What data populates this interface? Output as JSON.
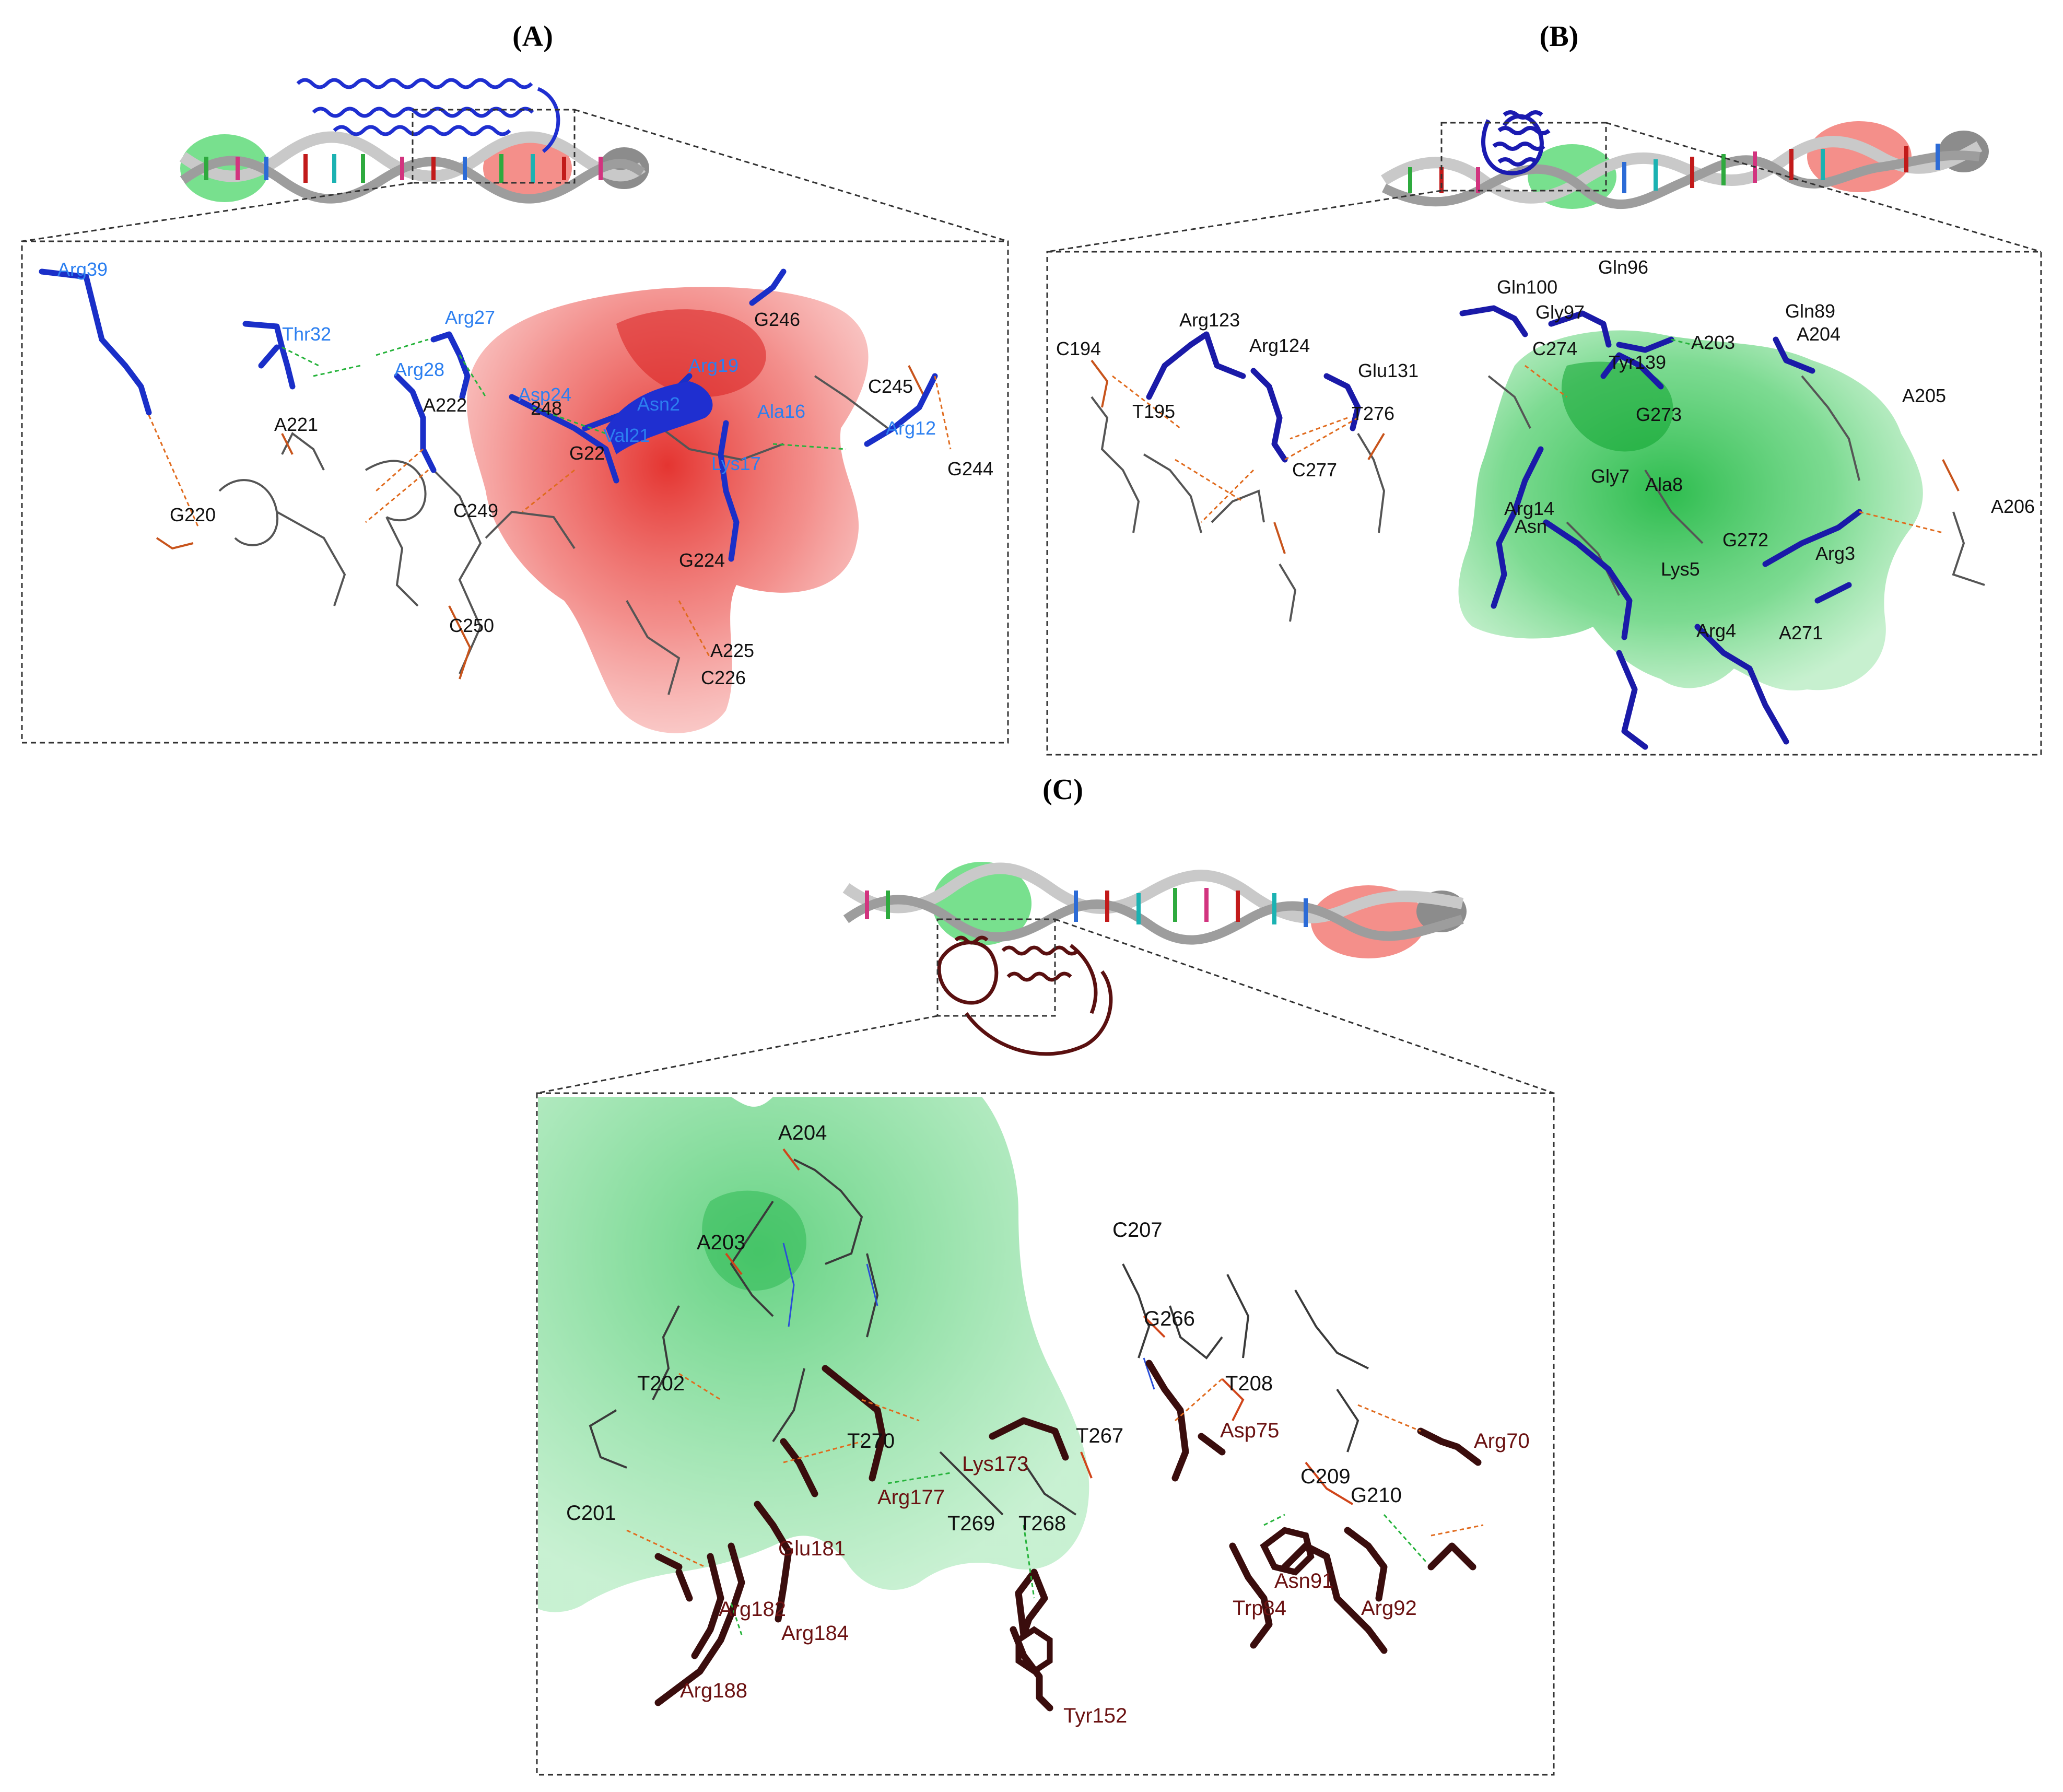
{
  "panels": {
    "A": {
      "title": "(A)",
      "protein_labels": [
        {
          "text": "Arg39"
        },
        {
          "text": "Thr32"
        },
        {
          "text": "Arg27"
        },
        {
          "text": "Arg28"
        },
        {
          "text": "Asp24"
        },
        {
          "text": "Arg19"
        },
        {
          "text": "Asn2"
        },
        {
          "text": "Val21"
        },
        {
          "text": "Ala16"
        },
        {
          "text": "Lys17"
        },
        {
          "text": "Arg12"
        }
      ],
      "dna_labels": [
        {
          "text": "A221"
        },
        {
          "text": "A222"
        },
        {
          "text": "248"
        },
        {
          "text": "G246"
        },
        {
          "text": "C245"
        },
        {
          "text": "G244"
        },
        {
          "text": "G220"
        },
        {
          "text": "C249"
        },
        {
          "text": "G22"
        },
        {
          "text": "G224"
        },
        {
          "text": "C250"
        },
        {
          "text": "A225"
        },
        {
          "text": "C226"
        }
      ],
      "colors": {
        "protein": "#1f3fd8",
        "surface": "#e8433f"
      }
    },
    "B": {
      "title": "(B)",
      "protein_labels": [
        {
          "text": "Arg123"
        },
        {
          "text": "Arg124"
        },
        {
          "text": "Glu131"
        },
        {
          "text": "Gln100"
        },
        {
          "text": "Gln96"
        },
        {
          "text": "Gly97"
        },
        {
          "text": "Gln89"
        },
        {
          "text": "Tyr139"
        },
        {
          "text": "Gly7"
        },
        {
          "text": "Ala8"
        },
        {
          "text": "Arg14"
        },
        {
          "text": "Asn"
        },
        {
          "text": "Lys5"
        },
        {
          "text": "Arg3"
        },
        {
          "text": "Arg4"
        }
      ],
      "dna_labels": [
        {
          "text": "C194"
        },
        {
          "text": "T195"
        },
        {
          "text": "T276"
        },
        {
          "text": "C277"
        },
        {
          "text": "C274"
        },
        {
          "text": "A203"
        },
        {
          "text": "A204"
        },
        {
          "text": "A205"
        },
        {
          "text": "G273"
        },
        {
          "text": "A206"
        },
        {
          "text": "G272"
        },
        {
          "text": "A271"
        }
      ],
      "colors": {
        "protein": "#1a1aa8",
        "surface": "#3ec75a"
      }
    },
    "C": {
      "title": "(C)",
      "protein_labels": [
        {
          "text": "Lys173"
        },
        {
          "text": "Arg177"
        },
        {
          "text": "Glu181"
        },
        {
          "text": "Arg182"
        },
        {
          "text": "Arg184"
        },
        {
          "text": "Arg188"
        },
        {
          "text": "Tyr152"
        },
        {
          "text": "Asp75"
        },
        {
          "text": "Arg70"
        },
        {
          "text": "Asn91"
        },
        {
          "text": "Trp84"
        },
        {
          "text": "Arg92"
        }
      ],
      "dna_labels": [
        {
          "text": "A204"
        },
        {
          "text": "A203"
        },
        {
          "text": "C207"
        },
        {
          "text": "G266"
        },
        {
          "text": "T202"
        },
        {
          "text": "T208"
        },
        {
          "text": "T270"
        },
        {
          "text": "T267"
        },
        {
          "text": "C209"
        },
        {
          "text": "G210"
        },
        {
          "text": "C201"
        },
        {
          "text": "T269"
        },
        {
          "text": "T268"
        }
      ],
      "colors": {
        "protein": "#5a1414",
        "surface": "#58cf7c"
      }
    }
  }
}
